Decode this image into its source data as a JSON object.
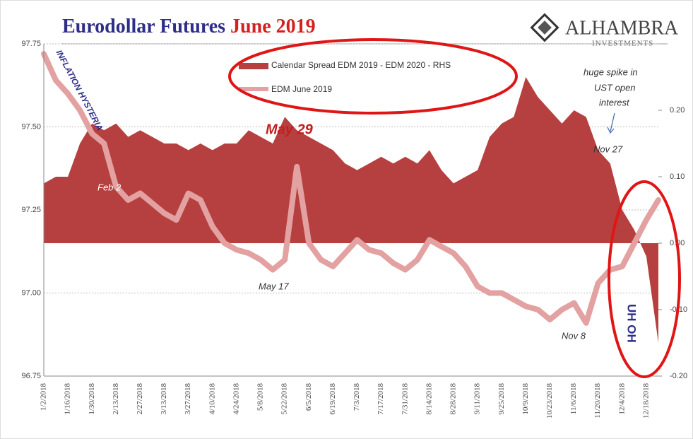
{
  "chart_data": {
    "type": "line",
    "title": "Eurodollar Futures",
    "title_highlight": "June 2019",
    "brand": "ALHAMBRA",
    "brand_sub": "INVESTMENTS",
    "categories": [
      "1/2/2018",
      null,
      "1/16/2018",
      null,
      "1/30/2018",
      null,
      "2/13/2018",
      null,
      "2/27/2018",
      null,
      "3/13/2018",
      null,
      "3/27/2018",
      null,
      "4/10/2018",
      null,
      "4/24/2018",
      null,
      "5/8/2018",
      null,
      "5/22/2018",
      null,
      "6/5/2018",
      null,
      "6/19/2018",
      null,
      "7/3/2018",
      null,
      "7/17/2018",
      null,
      "7/31/2018",
      null,
      "8/14/2018",
      null,
      "8/28/2018",
      null,
      "9/11/2018",
      null,
      "9/25/2018",
      null,
      "10/9/2018",
      null,
      "10/23/2018",
      null,
      "11/6/2018",
      null,
      "11/20/2018",
      null,
      "12/4/2018",
      null,
      "12/18/2018",
      null
    ],
    "series": [
      {
        "name": "Calendar Spread EDM 2019 - EDM 2020 - RHS",
        "color": "#b5403f",
        "kind": "area",
        "axis": "y2",
        "values": [
          0.09,
          0.1,
          0.1,
          0.15,
          0.18,
          0.17,
          0.18,
          0.16,
          0.17,
          0.16,
          0.15,
          0.15,
          0.14,
          0.15,
          0.14,
          0.15,
          0.15,
          0.17,
          0.16,
          0.15,
          0.19,
          0.17,
          0.16,
          0.15,
          0.14,
          0.12,
          0.11,
          0.12,
          0.13,
          0.12,
          0.13,
          0.12,
          0.14,
          0.11,
          0.09,
          0.1,
          0.11,
          0.16,
          0.18,
          0.19,
          0.25,
          0.22,
          0.2,
          0.18,
          0.2,
          0.19,
          0.14,
          0.12,
          0.05,
          0.02,
          -0.02,
          -0.15
        ]
      },
      {
        "name": "EDM June 2019",
        "color": "#e3a1a1",
        "kind": "line",
        "values": [
          97.72,
          97.64,
          97.6,
          97.55,
          97.48,
          97.45,
          97.32,
          97.28,
          97.3,
          97.27,
          97.24,
          97.22,
          97.3,
          97.28,
          97.2,
          97.15,
          97.13,
          97.12,
          97.1,
          97.07,
          97.1,
          97.38,
          97.15,
          97.1,
          97.08,
          97.12,
          97.16,
          97.13,
          97.12,
          97.09,
          97.07,
          97.1,
          97.16,
          97.14,
          97.12,
          97.08,
          97.02,
          97.0,
          97.0,
          96.98,
          96.96,
          96.95,
          96.92,
          96.95,
          96.97,
          96.91,
          97.03,
          97.07,
          97.08,
          97.15,
          97.22,
          97.28
        ]
      }
    ],
    "ylim": [
      96.75,
      97.75
    ],
    "yticks": [
      96.75,
      {
        "value": 97.0,
        "label": "97.00"
      },
      97.25,
      {
        "value": 97.5,
        "label": "97.50"
      },
      97.75
    ],
    "y2lim": [
      -0.2,
      0.3
    ],
    "y2ticks": [
      {
        "value": -0.2,
        "label": "-0.20"
      },
      {
        "value": -0.1,
        "label": "-0.10"
      },
      {
        "value": 0,
        "label": "0.00"
      },
      {
        "value": 0.1,
        "label": "0.10"
      },
      {
        "value": 0.2,
        "label": "0.20"
      }
    ],
    "grid": true,
    "annotations": [
      "INFLATION HYSTERIA",
      "Feb 2",
      "May 29",
      "May 17",
      "Nov 8",
      "Nov 27",
      "huge spike in",
      "UST open",
      "interest",
      "UH OH"
    ]
  }
}
